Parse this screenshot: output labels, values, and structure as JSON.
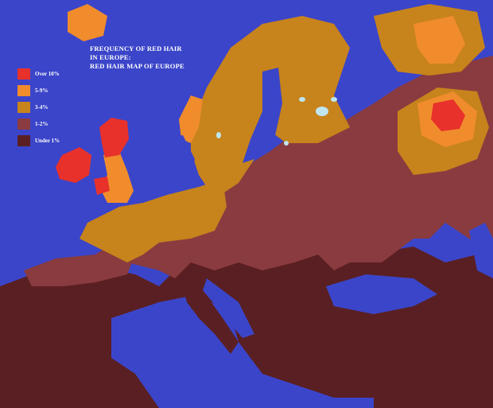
{
  "title_lines": [
    "FREQUENCY OF RED HAIR",
    "IN EUROPE:",
    "RED HAIR MAP OF EUROPE"
  ],
  "legend": [
    {
      "label": "Over 10%",
      "color": "#e8312b"
    },
    {
      "label": "5-9%",
      "color": "#f08c2c"
    },
    {
      "label": "3-4%",
      "color": "#c7831c"
    },
    {
      "label": "1-2%",
      "color": "#8a3b3f"
    },
    {
      "label": "Under 1%",
      "color": "#5a1f22"
    }
  ],
  "colors": {
    "sea": "#3b45c9",
    "lakes": "#bfe6f0",
    "borders": "#4a1a1a"
  }
}
